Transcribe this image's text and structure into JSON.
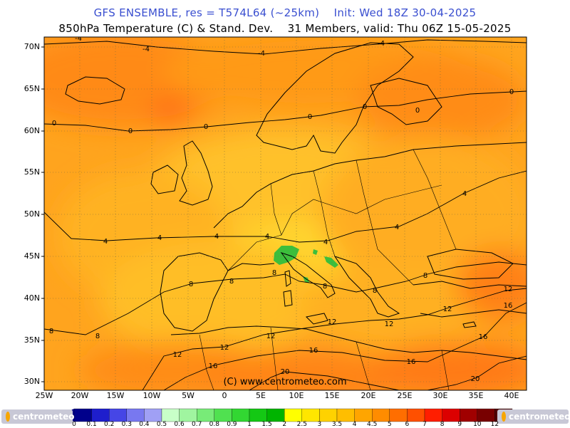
{
  "header": {
    "line1": "GFS ENSEMBLE, res = T574L64 (~25km)    Init: Wed 18Z 30-04-2025",
    "line2": "850hPa Temperature (C) & Stand. Dev.    31 Members, valid: Thu 06Z 15-05-2025"
  },
  "map": {
    "lat_labels": [
      "70N",
      "65N",
      "60N",
      "55N",
      "50N",
      "45N",
      "40N",
      "35N",
      "30N"
    ],
    "lon_labels": [
      "25W",
      "20W",
      "15W",
      "10W",
      "5W",
      "0",
      "5E",
      "10E",
      "15E",
      "20E",
      "25E",
      "30E",
      "35E",
      "40E"
    ],
    "watermark": "(C) www.centrometeo.com",
    "contour_labels": [
      "-4",
      "-4",
      "-4",
      "-4",
      "0",
      "0",
      "0",
      "0",
      "0",
      "0",
      "0",
      "4",
      "4",
      "4",
      "4",
      "4",
      "4",
      "4",
      "8",
      "8",
      "8",
      "8",
      "8",
      "8",
      "8",
      "8",
      "12",
      "12",
      "12",
      "12",
      "12",
      "12",
      "12",
      "16",
      "16",
      "16",
      "16",
      "16",
      "20",
      "20"
    ]
  },
  "legend": {
    "ticks": [
      "0",
      "0.1",
      "0.2",
      "0.3",
      "0.4",
      "0.5",
      "0.6",
      "0.7",
      "0.8",
      "0.9",
      "1",
      "1.5",
      "2",
      "2.5",
      "3",
      "3.5",
      "4",
      "4.5",
      "5",
      "6",
      "7",
      "8",
      "9",
      "10",
      "12"
    ],
    "colors": [
      "#00008b",
      "#1e1ecd",
      "#4646e6",
      "#7878f0",
      "#a0a0f5",
      "#c8ffc8",
      "#a0f5a0",
      "#78eb78",
      "#50e150",
      "#32d732",
      "#14c814",
      "#00b400",
      "#ffff00",
      "#ffe600",
      "#ffd200",
      "#ffbe00",
      "#ffa500",
      "#ff8c00",
      "#ff6e00",
      "#ff5000",
      "#ff1e00",
      "#dc0000",
      "#a00000",
      "#780000",
      "#500000"
    ],
    "logo_text": "centrometeo"
  }
}
